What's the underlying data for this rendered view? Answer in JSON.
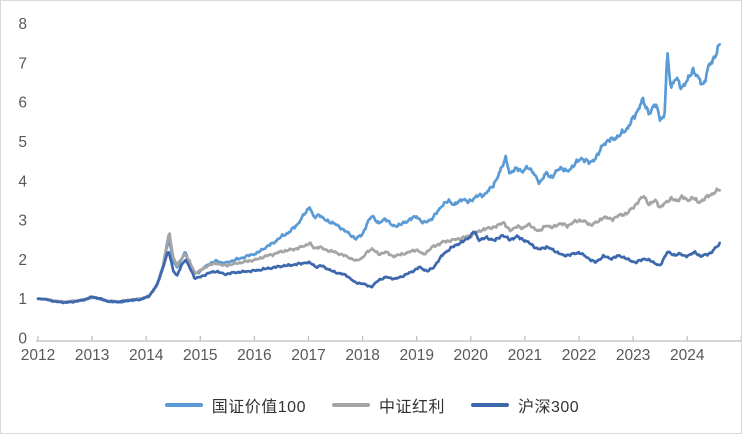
{
  "chart_data": {
    "type": "line",
    "title": "",
    "xlabel": "",
    "ylabel": "",
    "x_axis": {
      "tick_labels": [
        "2012",
        "2013",
        "2014",
        "2015",
        "2016",
        "2017",
        "2018",
        "2019",
        "2020",
        "2021",
        "2022",
        "2023",
        "2024"
      ],
      "range_years_offset": [
        0,
        12.6
      ]
    },
    "y_axis": {
      "tick_labels": [
        "0",
        "1",
        "2",
        "3",
        "4",
        "5",
        "6",
        "7",
        "8"
      ],
      "range": [
        0,
        8
      ],
      "grid": false
    },
    "legend_position": "bottom",
    "axis_color": "#bfbfbf",
    "label_color": "#595959",
    "series": [
      {
        "name": "国证价值100",
        "color": "#5b9bd5",
        "anchors": [
          [
            0,
            1.0
          ],
          [
            0.15,
            0.99
          ],
          [
            0.3,
            0.94
          ],
          [
            0.5,
            0.91
          ],
          [
            0.7,
            0.94
          ],
          [
            0.85,
            0.97
          ],
          [
            1.0,
            1.03
          ],
          [
            1.15,
            0.99
          ],
          [
            1.3,
            0.93
          ],
          [
            1.5,
            0.91
          ],
          [
            1.7,
            0.95
          ],
          [
            1.9,
            0.99
          ],
          [
            2.05,
            1.06
          ],
          [
            2.2,
            1.34
          ],
          [
            2.3,
            1.78
          ],
          [
            2.38,
            2.32
          ],
          [
            2.42,
            2.52
          ],
          [
            2.5,
            1.95
          ],
          [
            2.57,
            1.8
          ],
          [
            2.65,
            1.98
          ],
          [
            2.72,
            2.2
          ],
          [
            2.8,
            1.9
          ],
          [
            2.9,
            1.63
          ],
          [
            3.0,
            1.7
          ],
          [
            3.15,
            1.88
          ],
          [
            3.3,
            1.96
          ],
          [
            3.45,
            1.9
          ],
          [
            3.6,
            1.97
          ],
          [
            3.75,
            2.03
          ],
          [
            3.9,
            2.1
          ],
          [
            4.05,
            2.16
          ],
          [
            4.2,
            2.3
          ],
          [
            4.35,
            2.42
          ],
          [
            4.5,
            2.58
          ],
          [
            4.65,
            2.7
          ],
          [
            4.8,
            2.9
          ],
          [
            4.95,
            3.2
          ],
          [
            5.02,
            3.35
          ],
          [
            5.1,
            3.05
          ],
          [
            5.2,
            3.15
          ],
          [
            5.3,
            3.0
          ],
          [
            5.45,
            2.93
          ],
          [
            5.6,
            2.8
          ],
          [
            5.75,
            2.65
          ],
          [
            5.88,
            2.52
          ],
          [
            6.0,
            2.65
          ],
          [
            6.1,
            2.95
          ],
          [
            6.18,
            3.12
          ],
          [
            6.3,
            2.9
          ],
          [
            6.42,
            3.05
          ],
          [
            6.55,
            2.85
          ],
          [
            6.7,
            2.88
          ],
          [
            6.85,
            3.0
          ],
          [
            7.0,
            3.1
          ],
          [
            7.12,
            2.92
          ],
          [
            7.3,
            3.05
          ],
          [
            7.45,
            3.35
          ],
          [
            7.6,
            3.5
          ],
          [
            7.7,
            3.38
          ],
          [
            7.85,
            3.55
          ],
          [
            7.95,
            3.45
          ],
          [
            8.1,
            3.6
          ],
          [
            8.25,
            3.65
          ],
          [
            8.4,
            3.85
          ],
          [
            8.55,
            4.25
          ],
          [
            8.65,
            4.62
          ],
          [
            8.72,
            4.15
          ],
          [
            8.85,
            4.35
          ],
          [
            8.95,
            4.2
          ],
          [
            9.05,
            4.38
          ],
          [
            9.15,
            4.2
          ],
          [
            9.28,
            3.95
          ],
          [
            9.4,
            4.2
          ],
          [
            9.5,
            4.08
          ],
          [
            9.65,
            4.35
          ],
          [
            9.78,
            4.22
          ],
          [
            9.9,
            4.4
          ],
          [
            10.05,
            4.58
          ],
          [
            10.2,
            4.45
          ],
          [
            10.35,
            4.65
          ],
          [
            10.45,
            4.95
          ],
          [
            10.6,
            5.05
          ],
          [
            10.75,
            5.15
          ],
          [
            10.9,
            5.35
          ],
          [
            11.05,
            5.7
          ],
          [
            11.17,
            6.05
          ],
          [
            11.3,
            5.72
          ],
          [
            11.42,
            5.95
          ],
          [
            11.5,
            5.6
          ],
          [
            11.58,
            5.58
          ],
          [
            11.63,
            7.25
          ],
          [
            11.7,
            6.4
          ],
          [
            11.8,
            6.6
          ],
          [
            11.9,
            6.38
          ],
          [
            12.0,
            6.52
          ],
          [
            12.1,
            6.85
          ],
          [
            12.2,
            6.6
          ],
          [
            12.3,
            6.45
          ],
          [
            12.4,
            6.9
          ],
          [
            12.5,
            7.15
          ],
          [
            12.6,
            7.45
          ]
        ]
      },
      {
        "name": "中证红利",
        "color": "#a5a5a5",
        "anchors": [
          [
            0,
            1.0
          ],
          [
            0.15,
            0.99
          ],
          [
            0.3,
            0.95
          ],
          [
            0.5,
            0.92
          ],
          [
            0.7,
            0.95
          ],
          [
            0.85,
            0.98
          ],
          [
            1.0,
            1.04
          ],
          [
            1.15,
            1.0
          ],
          [
            1.3,
            0.94
          ],
          [
            1.5,
            0.93
          ],
          [
            1.7,
            0.97
          ],
          [
            1.9,
            1.0
          ],
          [
            2.05,
            1.07
          ],
          [
            2.2,
            1.35
          ],
          [
            2.3,
            1.75
          ],
          [
            2.38,
            2.4
          ],
          [
            2.43,
            2.66
          ],
          [
            2.5,
            2.05
          ],
          [
            2.57,
            1.86
          ],
          [
            2.65,
            2.0
          ],
          [
            2.72,
            2.15
          ],
          [
            2.8,
            1.95
          ],
          [
            2.9,
            1.65
          ],
          [
            3.0,
            1.72
          ],
          [
            3.15,
            1.85
          ],
          [
            3.3,
            1.9
          ],
          [
            3.45,
            1.84
          ],
          [
            3.6,
            1.88
          ],
          [
            3.75,
            1.92
          ],
          [
            3.9,
            1.96
          ],
          [
            4.05,
            2.0
          ],
          [
            4.2,
            2.08
          ],
          [
            4.35,
            2.13
          ],
          [
            4.5,
            2.2
          ],
          [
            4.65,
            2.24
          ],
          [
            4.8,
            2.28
          ],
          [
            4.95,
            2.36
          ],
          [
            5.02,
            2.42
          ],
          [
            5.1,
            2.28
          ],
          [
            5.2,
            2.32
          ],
          [
            5.3,
            2.25
          ],
          [
            5.45,
            2.2
          ],
          [
            5.6,
            2.13
          ],
          [
            5.75,
            2.05
          ],
          [
            5.88,
            1.96
          ],
          [
            6.0,
            2.05
          ],
          [
            6.1,
            2.2
          ],
          [
            6.18,
            2.28
          ],
          [
            6.3,
            2.12
          ],
          [
            6.42,
            2.2
          ],
          [
            6.55,
            2.08
          ],
          [
            6.7,
            2.12
          ],
          [
            6.85,
            2.18
          ],
          [
            7.0,
            2.25
          ],
          [
            7.12,
            2.12
          ],
          [
            7.3,
            2.32
          ],
          [
            7.5,
            2.45
          ],
          [
            7.7,
            2.5
          ],
          [
            7.85,
            2.55
          ],
          [
            8.0,
            2.6
          ],
          [
            8.2,
            2.75
          ],
          [
            8.35,
            2.8
          ],
          [
            8.5,
            2.85
          ],
          [
            8.6,
            2.96
          ],
          [
            8.72,
            2.72
          ],
          [
            8.85,
            2.85
          ],
          [
            8.95,
            2.78
          ],
          [
            9.05,
            2.9
          ],
          [
            9.15,
            2.8
          ],
          [
            9.28,
            2.72
          ],
          [
            9.4,
            2.88
          ],
          [
            9.5,
            2.8
          ],
          [
            9.65,
            2.92
          ],
          [
            9.78,
            2.85
          ],
          [
            9.9,
            2.95
          ],
          [
            10.05,
            3.0
          ],
          [
            10.2,
            2.88
          ],
          [
            10.35,
            2.95
          ],
          [
            10.45,
            3.08
          ],
          [
            10.6,
            3.02
          ],
          [
            10.75,
            3.12
          ],
          [
            10.9,
            3.18
          ],
          [
            11.05,
            3.4
          ],
          [
            11.2,
            3.62
          ],
          [
            11.3,
            3.38
          ],
          [
            11.42,
            3.52
          ],
          [
            11.5,
            3.3
          ],
          [
            11.6,
            3.45
          ],
          [
            11.7,
            3.55
          ],
          [
            11.8,
            3.48
          ],
          [
            11.9,
            3.6
          ],
          [
            12.0,
            3.5
          ],
          [
            12.1,
            3.58
          ],
          [
            12.2,
            3.45
          ],
          [
            12.3,
            3.52
          ],
          [
            12.4,
            3.62
          ],
          [
            12.5,
            3.7
          ],
          [
            12.6,
            3.78
          ]
        ]
      },
      {
        "name": "沪深300",
        "color": "#3e68ae",
        "anchors": [
          [
            0,
            1.0
          ],
          [
            0.15,
            0.98
          ],
          [
            0.3,
            0.93
          ],
          [
            0.5,
            0.9
          ],
          [
            0.7,
            0.93
          ],
          [
            0.85,
            0.97
          ],
          [
            1.0,
            1.05
          ],
          [
            1.15,
            1.0
          ],
          [
            1.3,
            0.93
          ],
          [
            1.5,
            0.92
          ],
          [
            1.7,
            0.96
          ],
          [
            1.9,
            0.98
          ],
          [
            2.05,
            1.06
          ],
          [
            2.2,
            1.35
          ],
          [
            2.3,
            1.75
          ],
          [
            2.38,
            2.1
          ],
          [
            2.42,
            2.2
          ],
          [
            2.5,
            1.72
          ],
          [
            2.57,
            1.57
          ],
          [
            2.65,
            1.85
          ],
          [
            2.72,
            2.0
          ],
          [
            2.8,
            1.8
          ],
          [
            2.9,
            1.52
          ],
          [
            3.0,
            1.55
          ],
          [
            3.15,
            1.65
          ],
          [
            3.3,
            1.7
          ],
          [
            3.45,
            1.62
          ],
          [
            3.6,
            1.66
          ],
          [
            3.75,
            1.68
          ],
          [
            3.9,
            1.7
          ],
          [
            4.05,
            1.72
          ],
          [
            4.2,
            1.76
          ],
          [
            4.35,
            1.79
          ],
          [
            4.5,
            1.83
          ],
          [
            4.65,
            1.85
          ],
          [
            4.8,
            1.88
          ],
          [
            4.95,
            1.92
          ],
          [
            5.05,
            1.9
          ],
          [
            5.15,
            1.8
          ],
          [
            5.25,
            1.84
          ],
          [
            5.4,
            1.72
          ],
          [
            5.55,
            1.65
          ],
          [
            5.7,
            1.6
          ],
          [
            5.85,
            1.42
          ],
          [
            6.0,
            1.38
          ],
          [
            6.17,
            1.3
          ],
          [
            6.3,
            1.48
          ],
          [
            6.45,
            1.55
          ],
          [
            6.6,
            1.5
          ],
          [
            6.75,
            1.58
          ],
          [
            6.9,
            1.68
          ],
          [
            7.05,
            1.8
          ],
          [
            7.2,
            1.7
          ],
          [
            7.3,
            1.78
          ],
          [
            7.5,
            2.15
          ],
          [
            7.7,
            2.35
          ],
          [
            7.85,
            2.45
          ],
          [
            8.0,
            2.6
          ],
          [
            8.06,
            2.72
          ],
          [
            8.15,
            2.5
          ],
          [
            8.3,
            2.55
          ],
          [
            8.45,
            2.48
          ],
          [
            8.58,
            2.62
          ],
          [
            8.72,
            2.5
          ],
          [
            8.85,
            2.58
          ],
          [
            8.95,
            2.52
          ],
          [
            9.1,
            2.4
          ],
          [
            9.25,
            2.25
          ],
          [
            9.4,
            2.32
          ],
          [
            9.55,
            2.22
          ],
          [
            9.7,
            2.1
          ],
          [
            9.85,
            2.12
          ],
          [
            10.0,
            2.18
          ],
          [
            10.15,
            2.05
          ],
          [
            10.3,
            1.92
          ],
          [
            10.45,
            2.08
          ],
          [
            10.6,
            2.02
          ],
          [
            10.75,
            2.1
          ],
          [
            10.9,
            2.0
          ],
          [
            11.05,
            1.92
          ],
          [
            11.2,
            2.02
          ],
          [
            11.35,
            1.95
          ],
          [
            11.5,
            1.83
          ],
          [
            11.63,
            2.2
          ],
          [
            11.75,
            2.1
          ],
          [
            11.85,
            2.15
          ],
          [
            11.95,
            2.08
          ],
          [
            12.05,
            2.12
          ],
          [
            12.15,
            2.18
          ],
          [
            12.25,
            2.08
          ],
          [
            12.35,
            2.12
          ],
          [
            12.45,
            2.18
          ],
          [
            12.6,
            2.4
          ]
        ]
      }
    ]
  }
}
